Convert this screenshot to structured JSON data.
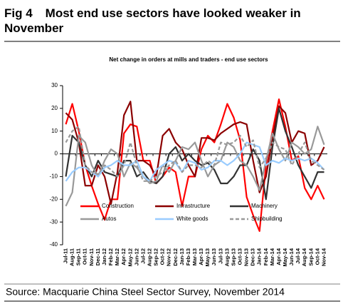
{
  "chart_data": {
    "type": "line",
    "figure_label": "Fig 4",
    "title": "Most end use sectors have looked weaker in November",
    "subtitle": "Net change in orders at mills and traders - end use sectors",
    "source": "Source: Macquarie China Steel Sector Survey, November 2014",
    "categories": [
      "Jul-11",
      "Aug-11",
      "Sep-11",
      "Oct-11",
      "Nov-11",
      "Dec-11",
      "Jan-12",
      "Feb-12",
      "Mar-12",
      "Apr-12",
      "May-12",
      "Jun-12",
      "Jul-12",
      "Aug-12",
      "Sep-12",
      "Oct-12",
      "Nov-12",
      "Dec-12",
      "Jan-13",
      "Feb-13",
      "Mar-13",
      "Apr-13",
      "May-13",
      "Jun-13",
      "Jul-13",
      "Aug-13",
      "Sep-13",
      "Oct-13",
      "Nov-13",
      "Dec-13",
      "Jan-14",
      "Feb-14",
      "Mar-14",
      "Apr-14",
      "May-14",
      "Jun-14",
      "Jul-14",
      "Aug-14",
      "Sep-14",
      "Oct-14",
      "Nov-14"
    ],
    "series": [
      {
        "name": "Construction",
        "color": "#ff0000",
        "dash": false,
        "values": [
          13,
          22,
          10,
          -5,
          -14,
          -22,
          -29,
          -20,
          -20,
          9,
          13,
          12,
          -3,
          -3,
          -13,
          -10,
          -6,
          -8,
          -23,
          -10,
          -10,
          2,
          8,
          5,
          13,
          22,
          16,
          6,
          -19,
          -27,
          -34,
          -5,
          10,
          24,
          12,
          -3,
          -1,
          -15,
          -20,
          -14,
          -20
        ]
      },
      {
        "name": "Infrastructure",
        "color": "#8b0000",
        "dash": false,
        "values": [
          18,
          15,
          5,
          -14,
          -14,
          -5,
          -10,
          -22,
          -8,
          17,
          23,
          -3,
          -3,
          -5,
          -10,
          8,
          11,
          5,
          2,
          -5,
          -10,
          7,
          7,
          6,
          9,
          11,
          13,
          14,
          13,
          -3,
          -17,
          -10,
          7,
          21,
          18,
          5,
          10,
          9,
          -5,
          -3,
          3
        ]
      },
      {
        "name": "Machinery",
        "color": "#333333",
        "dash": false,
        "values": [
          -10,
          8,
          5,
          -5,
          -10,
          -3,
          -8,
          -9,
          -10,
          -3,
          -3,
          -10,
          -8,
          -12,
          -13,
          -10,
          0,
          3,
          -3,
          0,
          -3,
          -5,
          -4,
          -7,
          -13,
          -13,
          -10,
          -5,
          -5,
          2,
          -3,
          -20,
          3,
          20,
          10,
          3,
          -5,
          -10,
          -15,
          -8,
          -8
        ]
      },
      {
        "name": "Autos",
        "color": "#999999",
        "dash": false,
        "values": [
          -23,
          -17,
          8,
          5,
          -5,
          -10,
          -3,
          2,
          0,
          -10,
          -4,
          -6,
          -10,
          -13,
          -12,
          -5,
          -8,
          -3,
          3,
          2,
          5,
          -3,
          -10,
          -5,
          -3,
          5,
          3,
          -3,
          -5,
          -10,
          -16,
          -3,
          9,
          2,
          -3,
          5,
          3,
          0,
          2,
          12,
          4
        ]
      },
      {
        "name": "White goods",
        "color": "#99ccff",
        "dash": false,
        "values": [
          -12,
          -8,
          -6,
          -6,
          -8,
          -10,
          -6,
          -5,
          -3,
          -5,
          -5,
          -3,
          -10,
          -12,
          -7,
          -5,
          -3,
          -4,
          -8,
          -3,
          -4,
          -7,
          -6,
          -3,
          -3,
          -5,
          -3,
          0,
          5,
          4,
          3,
          -5,
          -3,
          -4,
          -2,
          -3,
          -2,
          -3,
          -2,
          -4,
          -7
        ]
      },
      {
        "name": "Shipbuilding",
        "color": "#999999",
        "dash": true,
        "values": [
          5,
          10,
          12,
          -5,
          -8,
          -9,
          -5,
          -7,
          -10,
          -5,
          5,
          -5,
          -12,
          -12,
          -10,
          -8,
          -5,
          -3,
          -8,
          -5,
          -5,
          -6,
          -3,
          -5,
          5,
          4,
          5,
          8,
          3,
          6,
          -6,
          -2,
          5,
          3,
          2,
          -5,
          0,
          5,
          -3,
          -5,
          -7
        ]
      }
    ],
    "ylim": [
      -40,
      30
    ],
    "yticks": [
      -40,
      -30,
      -20,
      -10,
      0,
      10,
      20,
      30
    ],
    "grid": false
  }
}
